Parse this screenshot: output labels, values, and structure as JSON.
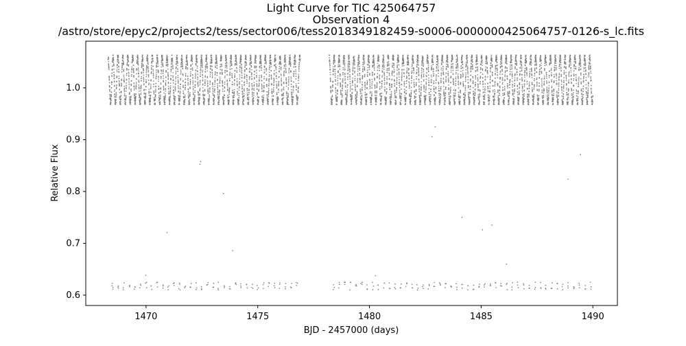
{
  "chart_data": {
    "type": "scatter",
    "title_lines": [
      "Light Curve for TIC 425064757",
      "Observation 4",
      "/astro/store/epyc2/projects2/tess/sector006/tess2018349182459-s0006-0000000425064757-0126-s_lc.fits"
    ],
    "xlabel": "BJD - 2457000 (days)",
    "ylabel": "Relative Flux",
    "xlim": [
      1467.3,
      1491.1
    ],
    "ylim": [
      0.58,
      1.09
    ],
    "x_ticks": [
      1470,
      1475,
      1480,
      1485,
      1490
    ],
    "y_ticks": [
      0.6,
      0.7,
      0.8,
      0.9,
      1.0
    ],
    "x_tick_labels": [
      "1470",
      "1475",
      "1480",
      "1485",
      "1490"
    ],
    "y_tick_labels": [
      "0.6",
      "0.7",
      "0.8",
      "0.9",
      "1.0"
    ],
    "grid": false,
    "marker_color": "#808080",
    "series": [
      {
        "segments": [
          {
            "x_start": 1468.3,
            "x_end": 1476.9
          },
          {
            "x_start": 1478.2,
            "x_end": 1490.0
          }
        ],
        "baseline_flux_range": [
          0.97,
          1.06
        ],
        "pulsation_period_days": 0.22,
        "dip_flux_min": 0.61,
        "dip_floor_flux_range": [
          0.61,
          0.625
        ]
      }
    ]
  }
}
